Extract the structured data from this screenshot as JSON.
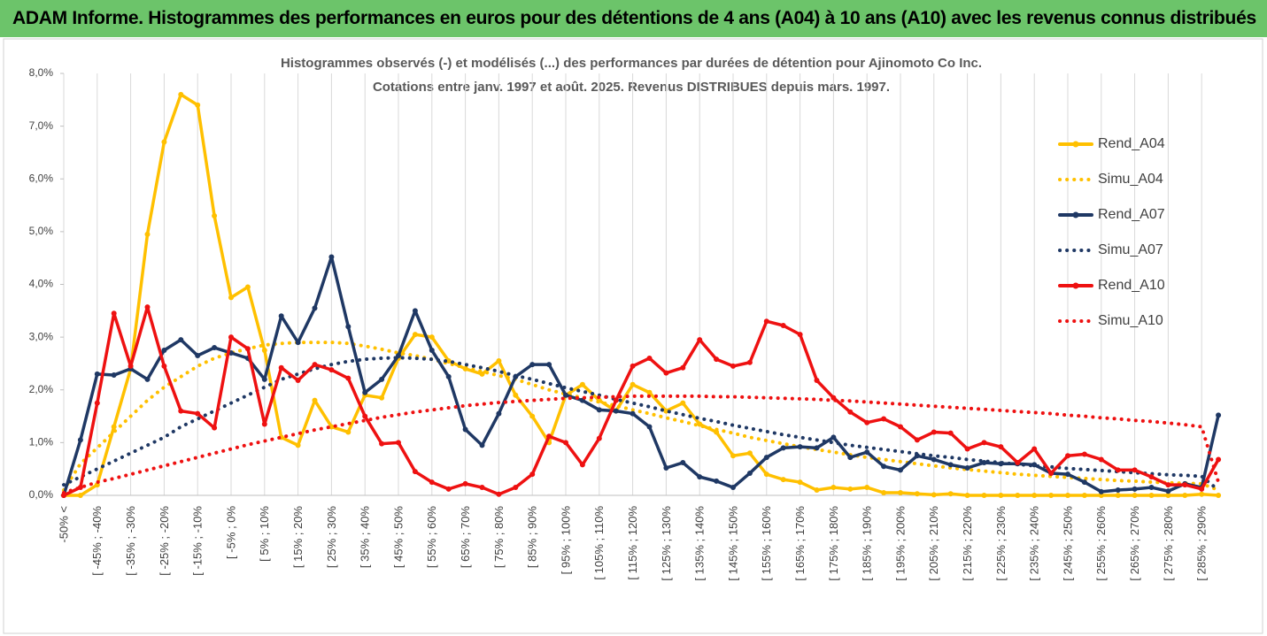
{
  "header": {
    "title": "ADAM Informe. Histogrammes des performances en euros pour des détentions de 4 ans (A04) à 10 ans (A10) avec les revenus connus distribués"
  },
  "chart_data": {
    "type": "line",
    "title": "Histogrammes observés (-) et modélisés (...) des performances par durées de détention pour Ajinomoto Co Inc.",
    "subtitle": "Cotations entre janv. 1997 et août. 2025. Revenus DISTRIBUES depuis mars. 1997.",
    "categories": [
      "-50% <",
      null,
      "[ -45% ; -40%",
      null,
      "[ -35% ; -30%",
      null,
      "[ -25% ; -20%",
      null,
      "[ -15% ; -10%",
      null,
      "[ -5% ; 0%",
      null,
      "[ 5% ; 10%",
      null,
      "[ 15% ; 20%",
      null,
      "[ 25% ; 30%",
      null,
      "[ 35% ; 40%",
      null,
      "[ 45% ; 50%",
      null,
      "[ 55% ; 60%",
      null,
      "[ 65% ; 70%",
      null,
      "[ 75% ; 80%",
      null,
      "[ 85% ; 90%",
      null,
      "[ 95% ; 100%",
      null,
      "[ 105% ; 110%",
      null,
      "[ 115% ; 120%",
      null,
      "[ 125% ; 130%",
      null,
      "[ 135% ; 140%",
      null,
      "[ 145% ; 150%",
      null,
      "[ 155% ; 160%",
      null,
      "[ 165% ; 170%",
      null,
      "[ 175% ; 180%",
      null,
      "[ 185% ; 190%",
      null,
      "[ 195% ; 200%",
      null,
      "[ 205% ; 210%",
      null,
      "[ 215% ; 220%",
      null,
      "[ 225% ; 230%",
      null,
      "[ 235% ; 240%",
      null,
      "[ 245% ; 250%",
      null,
      "[ 255% ; 260%",
      null,
      "[ 265% ; 270%",
      null,
      "[ 275% ; 280%",
      null,
      "[ 285% ; 290%",
      null
    ],
    "series": [
      {
        "name": "Rend_A04",
        "color": "#ffc000",
        "style": "solid",
        "markers": true,
        "values": [
          0,
          0,
          0.2,
          1.3,
          2.4,
          4.95,
          6.7,
          7.6,
          7.4,
          5.3,
          3.75,
          3.95,
          2.75,
          1.1,
          0.95,
          1.8,
          1.3,
          1.2,
          1.9,
          1.85,
          2.6,
          3.05,
          3.0,
          2.55,
          2.4,
          2.3,
          2.55,
          1.9,
          1.5,
          1.0,
          1.9,
          2.1,
          1.8,
          1.6,
          2.1,
          1.95,
          1.6,
          1.75,
          1.35,
          1.2,
          0.75,
          0.8,
          0.4,
          0.3,
          0.25,
          0.1,
          0.15,
          0.12,
          0.15,
          0.05,
          0.05,
          0.03,
          0.01,
          0.03,
          0,
          0,
          0,
          0,
          0,
          0,
          0,
          0,
          0,
          0,
          0,
          0,
          0,
          0,
          0.02,
          0
        ]
      },
      {
        "name": "Simu_A04",
        "color": "#ffc000",
        "style": "dotted",
        "markers": false,
        "values": [
          0.1,
          0.6,
          0.9,
          1.2,
          1.5,
          1.8,
          2.05,
          2.25,
          2.45,
          2.6,
          2.7,
          2.78,
          2.85,
          2.88,
          2.9,
          2.9,
          2.9,
          2.88,
          2.83,
          2.77,
          2.7,
          2.65,
          2.58,
          2.5,
          2.42,
          2.35,
          2.27,
          2.2,
          2.1,
          2.0,
          1.92,
          1.85,
          1.77,
          1.7,
          1.62,
          1.55,
          1.47,
          1.4,
          1.32,
          1.25,
          1.18,
          1.1,
          1.04,
          0.98,
          0.92,
          0.87,
          0.82,
          0.77,
          0.72,
          0.68,
          0.64,
          0.6,
          0.56,
          0.52,
          0.49,
          0.46,
          0.43,
          0.4,
          0.38,
          0.36,
          0.34,
          0.32,
          0.3,
          0.28,
          0.27,
          0.25,
          0.24,
          0.23,
          0.22,
          0.1
        ]
      },
      {
        "name": "Rend_A07",
        "color": "#1f3864",
        "style": "solid",
        "markers": true,
        "values": [
          0,
          1.05,
          2.3,
          2.28,
          2.4,
          2.2,
          2.75,
          2.95,
          2.65,
          2.8,
          2.7,
          2.6,
          2.2,
          3.4,
          2.9,
          3.55,
          4.52,
          3.2,
          1.95,
          2.2,
          2.65,
          3.5,
          2.75,
          2.25,
          1.25,
          0.95,
          1.55,
          2.25,
          2.48,
          2.48,
          1.9,
          1.8,
          1.62,
          1.6,
          1.55,
          1.3,
          0.52,
          0.62,
          0.35,
          0.27,
          0.15,
          0.42,
          0.72,
          0.9,
          0.92,
          0.9,
          1.1,
          0.72,
          0.82,
          0.55,
          0.48,
          0.75,
          0.68,
          0.58,
          0.52,
          0.62,
          0.6,
          0.6,
          0.58,
          0.42,
          0.4,
          0.25,
          0.07,
          0.1,
          0.12,
          0.15,
          0.08,
          0.22,
          0.15,
          1.52
        ]
      },
      {
        "name": "Simu_A07",
        "color": "#1f3864",
        "style": "dotted",
        "markers": false,
        "values": [
          0.2,
          0.35,
          0.5,
          0.65,
          0.8,
          0.95,
          1.1,
          1.3,
          1.45,
          1.6,
          1.75,
          1.9,
          2.05,
          2.2,
          2.3,
          2.4,
          2.48,
          2.54,
          2.58,
          2.6,
          2.61,
          2.6,
          2.58,
          2.54,
          2.48,
          2.42,
          2.35,
          2.27,
          2.2,
          2.12,
          2.04,
          1.97,
          1.9,
          1.82,
          1.75,
          1.68,
          1.6,
          1.53,
          1.46,
          1.4,
          1.33,
          1.27,
          1.21,
          1.15,
          1.1,
          1.05,
          1.0,
          0.95,
          0.91,
          0.87,
          0.83,
          0.79,
          0.75,
          0.72,
          0.68,
          0.65,
          0.62,
          0.59,
          0.56,
          0.54,
          0.51,
          0.49,
          0.47,
          0.45,
          0.43,
          0.41,
          0.39,
          0.38,
          0.36,
          0.1
        ]
      },
      {
        "name": "Rend_A10",
        "color": "#ee1111",
        "style": "solid",
        "markers": true,
        "values": [
          0,
          0.15,
          1.75,
          3.45,
          2.45,
          3.57,
          2.45,
          1.6,
          1.55,
          1.28,
          3.0,
          2.78,
          1.35,
          2.42,
          2.18,
          2.48,
          2.38,
          2.22,
          1.5,
          0.98,
          1.0,
          0.45,
          0.25,
          0.12,
          0.22,
          0.15,
          0.02,
          0.15,
          0.4,
          1.12,
          1.0,
          0.58,
          1.08,
          1.8,
          2.45,
          2.6,
          2.32,
          2.42,
          2.95,
          2.58,
          2.45,
          2.52,
          3.3,
          3.22,
          3.05,
          2.18,
          1.85,
          1.58,
          1.38,
          1.45,
          1.3,
          1.05,
          1.2,
          1.18,
          0.88,
          1.0,
          0.92,
          0.62,
          0.88,
          0.42,
          0.75,
          0.78,
          0.68,
          0.48,
          0.48,
          0.35,
          0.2,
          0.2,
          0.12,
          0.68
        ]
      },
      {
        "name": "Simu_A10",
        "color": "#ee1111",
        "style": "dotted",
        "markers": false,
        "values": [
          0.05,
          0.15,
          0.25,
          0.32,
          0.4,
          0.48,
          0.56,
          0.64,
          0.72,
          0.8,
          0.88,
          0.96,
          1.03,
          1.1,
          1.17,
          1.24,
          1.3,
          1.36,
          1.42,
          1.48,
          1.53,
          1.58,
          1.62,
          1.66,
          1.7,
          1.73,
          1.76,
          1.78,
          1.8,
          1.82,
          1.84,
          1.85,
          1.86,
          1.87,
          1.88,
          1.88,
          1.88,
          1.88,
          1.88,
          1.87,
          1.87,
          1.86,
          1.85,
          1.84,
          1.83,
          1.82,
          1.8,
          1.79,
          1.77,
          1.75,
          1.73,
          1.71,
          1.69,
          1.67,
          1.65,
          1.63,
          1.61,
          1.59,
          1.57,
          1.55,
          1.52,
          1.5,
          1.47,
          1.45,
          1.42,
          1.4,
          1.37,
          1.34,
          1.3,
          0.25
        ]
      }
    ],
    "ylim": [
      0,
      8
    ],
    "yticks": [
      {
        "value": 0,
        "label": "0,0%"
      },
      {
        "value": 1,
        "label": "1,0%"
      },
      {
        "value": 2,
        "label": "2,0%"
      },
      {
        "value": 3,
        "label": "3,0%"
      },
      {
        "value": 4,
        "label": "4,0%"
      },
      {
        "value": 5,
        "label": "5,0%"
      },
      {
        "value": 6,
        "label": "6,0%"
      },
      {
        "value": 7,
        "label": "7,0%"
      },
      {
        "value": 8,
        "label": "8,0%"
      }
    ],
    "grid": "x",
    "legend": "right"
  }
}
